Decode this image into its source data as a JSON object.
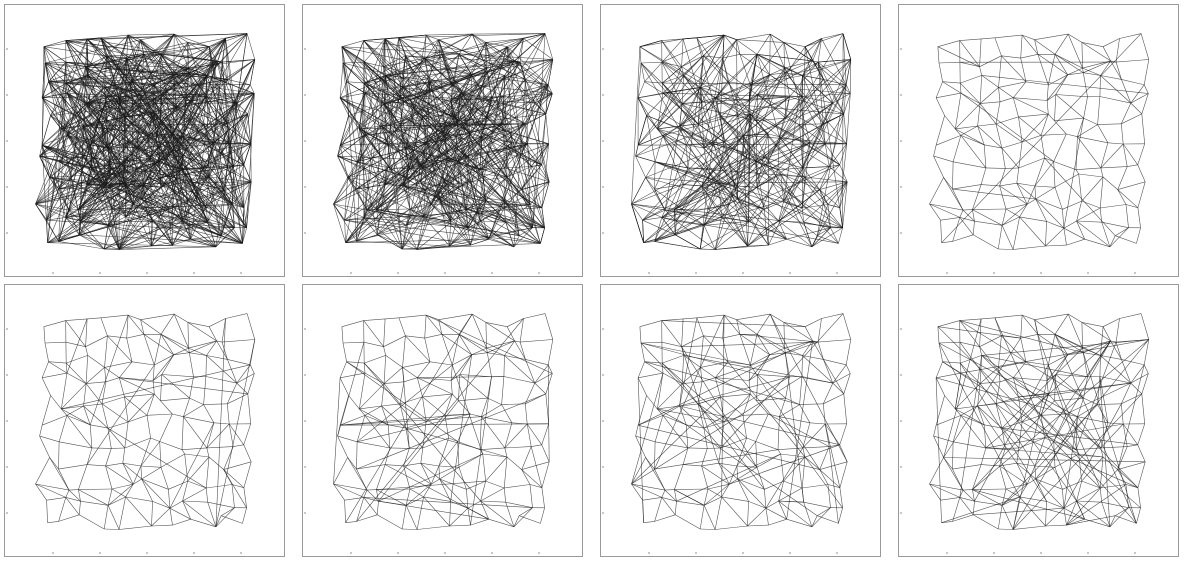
{
  "figure": {
    "panels": [
      {
        "id": "p1",
        "crossing_edges": 620,
        "local_edges": 180,
        "style": "dense"
      },
      {
        "id": "p2",
        "crossing_edges": 420,
        "local_edges": 200,
        "style": "dense"
      },
      {
        "id": "p3",
        "crossing_edges": 160,
        "local_edges": 260,
        "style": "medium"
      },
      {
        "id": "p4",
        "crossing_edges": 8,
        "local_edges": 0,
        "style": "mesh"
      },
      {
        "id": "p5",
        "crossing_edges": 10,
        "local_edges": 0,
        "style": "mesh"
      },
      {
        "id": "p6",
        "crossing_edges": 28,
        "local_edges": 0,
        "style": "mesh"
      },
      {
        "id": "p7",
        "crossing_edges": 45,
        "local_edges": 0,
        "style": "mesh"
      },
      {
        "id": "p8",
        "crossing_edges": 70,
        "local_edges": 0,
        "style": "mesh"
      }
    ],
    "line_color": "#1a1a1a",
    "frame_color": "#9a9a9a"
  }
}
